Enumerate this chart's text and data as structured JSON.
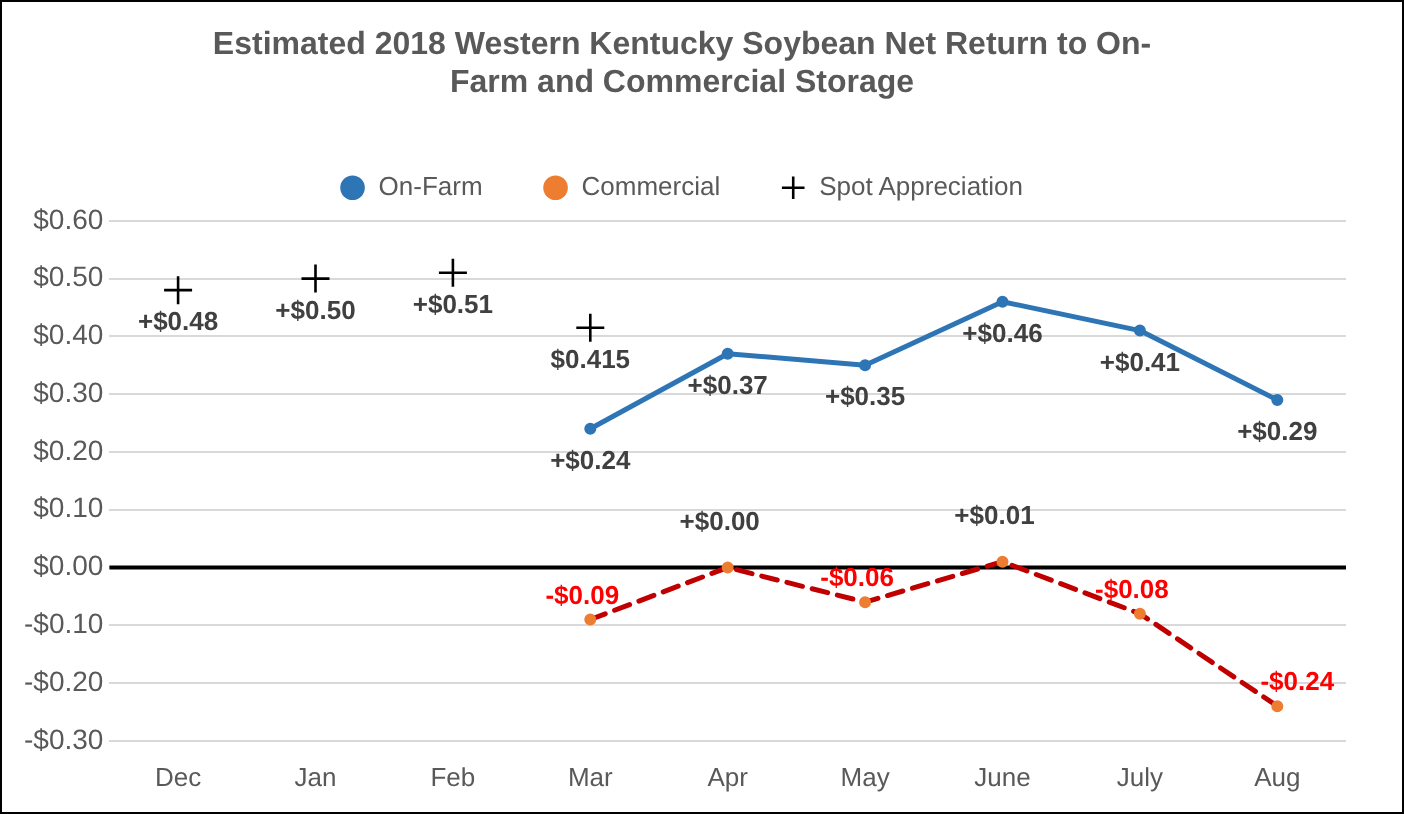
{
  "chart_data": {
    "type": "line",
    "title": "Estimated 2018 Western Kentucky Soybean Net Return to On-Farm and Commercial Storage",
    "categories": [
      "Dec",
      "Jan",
      "Feb",
      "Mar",
      "Apr",
      "May",
      "June",
      "July",
      "Aug"
    ],
    "series": [
      {
        "name": "On-Farm",
        "color": "#2e75b6",
        "marker": "circle",
        "line_style": "solid",
        "values": [
          null,
          null,
          null,
          0.24,
          0.37,
          0.35,
          0.46,
          0.41,
          0.29
        ],
        "value_labels": [
          null,
          null,
          null,
          "+$0.24",
          "+$0.37",
          "+$0.35",
          "+$0.46",
          "+$0.41",
          "+$0.29"
        ]
      },
      {
        "name": "Commercial",
        "color": "#c00000",
        "colors": [
          "#ed7d31",
          "#ed7d31",
          "#ed7d31",
          "#ed7d31",
          "#ed7d31",
          "#ed7d31",
          "#ed7d31",
          "#ed7d31",
          "#ed7d31"
        ],
        "marker": "circle",
        "line_style": "dashed",
        "values": [
          null,
          null,
          null,
          -0.09,
          0.0,
          -0.06,
          0.01,
          -0.08,
          -0.24
        ],
        "value_labels": [
          null,
          null,
          null,
          "-$0.09",
          "+$0.00",
          "-$0.06",
          "+$0.01",
          "-$0.08",
          "-$0.24"
        ]
      },
      {
        "name": "Spot Appreciation",
        "type": "scatter",
        "color": "#000000",
        "marker": "cross",
        "values": [
          0.48,
          0.5,
          0.51,
          0.415,
          null,
          null,
          null,
          null,
          null
        ],
        "value_labels": [
          "+$0.48",
          "+$0.50",
          "+$0.51",
          "$0.415",
          null,
          null,
          null,
          null,
          null
        ]
      }
    ],
    "ylim": [
      -0.3,
      0.6
    ],
    "yticks": [
      {
        "value": -0.3,
        "label": "-$0.30"
      },
      {
        "value": -0.2,
        "label": "-$0.20"
      },
      {
        "value": -0.1,
        "label": "-$0.10"
      },
      {
        "value": 0,
        "label": "$0.00"
      },
      {
        "value": 0.1,
        "label": "$0.10"
      },
      {
        "value": 0.2,
        "label": "$0.20"
      },
      {
        "value": 0.3,
        "label": "$0.30"
      },
      {
        "value": 0.4,
        "label": "$0.40"
      },
      {
        "value": 0.5,
        "label": "$0.50"
      },
      {
        "value": 0.6,
        "label": "$0.60"
      }
    ],
    "ref_lines": [
      {
        "axis": "y",
        "value": 0,
        "color": "#000000"
      }
    ],
    "grid": "y",
    "legend": "top"
  }
}
